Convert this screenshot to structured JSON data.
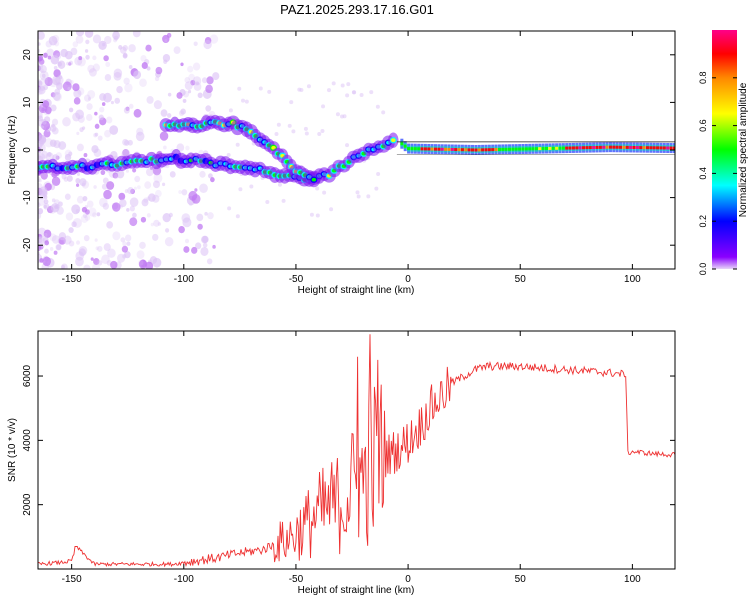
{
  "title": "PAZ1.2025.293.17.16.G01",
  "chart_data": [
    {
      "type": "heatmap",
      "xlabel": "Height of straight line (km)",
      "ylabel": "Frequency (Hz)",
      "xlim": [
        -165,
        119
      ],
      "ylim": [
        -25,
        25
      ],
      "xticks": [
        -150,
        -100,
        -50,
        0,
        50,
        100
      ],
      "yticks": [
        -20,
        -10,
        0,
        10,
        20
      ],
      "colorbar": {
        "label": "Normalized spectral amplitude",
        "range": [
          0.0,
          1.0
        ],
        "ticks": [
          0.0,
          0.2,
          0.4,
          0.6,
          0.8
        ],
        "colors": [
          "#e8d6f8",
          "#6a00ff",
          "#0000ff",
          "#00ffff",
          "#00ff00",
          "#ffff00",
          "#ff8800",
          "#ff0000",
          "#ff0088"
        ]
      },
      "ridge_center": [
        {
          "x": -165,
          "f": -3.5
        },
        {
          "x": -150,
          "f": -3.8
        },
        {
          "x": -125,
          "f": -2.8
        },
        {
          "x": -105,
          "f": -1.7
        },
        {
          "x": -100,
          "f": -2.0
        },
        {
          "x": -95,
          "f": -2.0
        },
        {
          "x": -85,
          "f": -3.0
        },
        {
          "x": -70,
          "f": -3.5
        },
        {
          "x": -60,
          "f": -5.0
        },
        {
          "x": -45,
          "f": -6.5
        },
        {
          "x": -35,
          "f": -5.0
        },
        {
          "x": -25,
          "f": -2.0
        },
        {
          "x": -15,
          "f": 0.5
        },
        {
          "x": -5,
          "f": 2.0
        },
        {
          "x": 0,
          "f": 0.3
        },
        {
          "x": 10,
          "f": 0.2
        },
        {
          "x": 30,
          "f": 0.0
        },
        {
          "x": 60,
          "f": 0.3
        },
        {
          "x": 90,
          "f": 0.6
        },
        {
          "x": 119,
          "f": 0.4
        }
      ],
      "upper_branch": [
        {
          "x": -108,
          "f": 5.0
        },
        {
          "x": -95,
          "f": 5.2
        },
        {
          "x": -85,
          "f": 5.6
        },
        {
          "x": -78,
          "f": 5.5
        },
        {
          "x": -70,
          "f": 4.0
        },
        {
          "x": -62,
          "f": 1.0
        },
        {
          "x": -55,
          "f": -2.0
        },
        {
          "x": -48,
          "f": -5.0
        },
        {
          "x": -42,
          "f": -6.5
        }
      ]
    },
    {
      "type": "line",
      "xlabel": "Height of straight line (km)",
      "ylabel": "SNR (10 * v/v)",
      "xlim": [
        -165,
        119
      ],
      "ylim": [
        0,
        7400
      ],
      "xticks": [
        -150,
        -100,
        -50,
        0,
        50,
        100
      ],
      "yticks": [
        2000,
        4000,
        6000
      ],
      "series": [
        {
          "name": "SNR",
          "color": "#ee3030",
          "x": [
            -165,
            -155,
            -150,
            -148,
            -140,
            -120,
            -105,
            -95,
            -85,
            -75,
            -65,
            -55,
            -50,
            -45,
            -40,
            -35,
            -30,
            -25,
            -20,
            -15,
            -10,
            -5,
            0,
            5,
            10,
            15,
            20,
            25,
            30,
            35,
            40,
            45,
            50,
            60,
            70,
            80,
            90,
            97,
            98,
            100,
            110,
            119
          ],
          "values": [
            150,
            200,
            250,
            700,
            150,
            150,
            150,
            250,
            350,
            500,
            600,
            900,
            1100,
            1400,
            1700,
            1900,
            2100,
            2500,
            2800,
            3300,
            3500,
            3700,
            3950,
            4400,
            5000,
            5400,
            5800,
            6000,
            6200,
            6300,
            6300,
            6300,
            6300,
            6250,
            6200,
            6150,
            6100,
            6050,
            3600,
            3650,
            3580,
            3550
          ]
        }
      ]
    }
  ]
}
